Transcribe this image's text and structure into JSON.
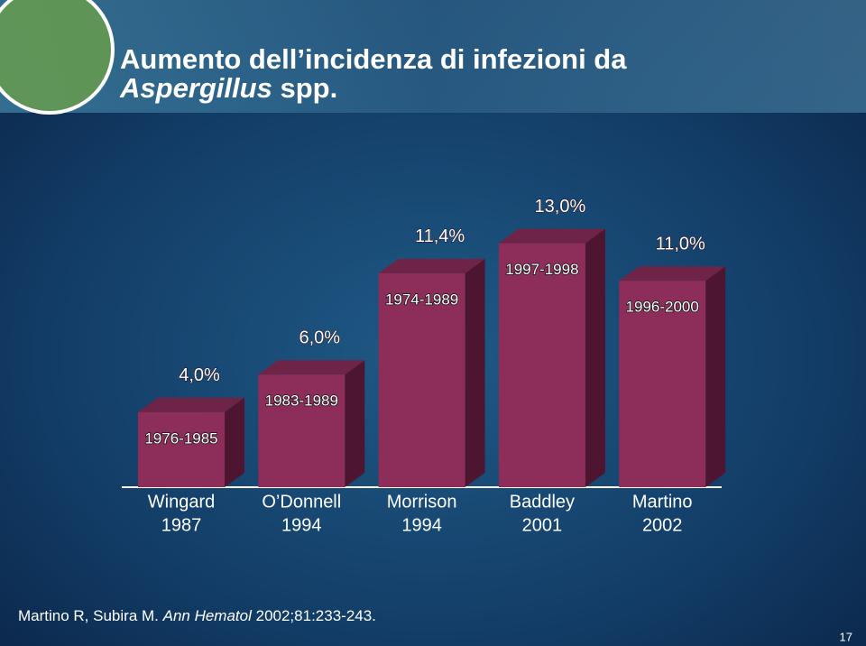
{
  "chart_data": {
    "type": "bar3d",
    "title": "Aumento dell’incidenza di infezioni da",
    "title_italic": "Aspergillus",
    "title_end": "spp.",
    "categories": [
      "Wingard",
      "O’Donnell",
      "Morrison",
      "Baddley",
      "Martino"
    ],
    "category_years": [
      "1987",
      "1994",
      "1994",
      "2001",
      "2002"
    ],
    "periods": [
      "1976-1985",
      "1983-1989",
      "1974-1989",
      "1997-1998",
      "1996-2000"
    ],
    "values": [
      4,
      6,
      11.4,
      13,
      11
    ],
    "value_labels": [
      "4,0%",
      "6,0%",
      "11,4%",
      "13,0%",
      "11,0%"
    ],
    "color": "#8c2d5a",
    "footnote": "Martino R, Subira M. ",
    "footnote_italic": "Ann Hematol",
    "footnote_end": " 2002;81:233-243.",
    "page_number": "17"
  }
}
